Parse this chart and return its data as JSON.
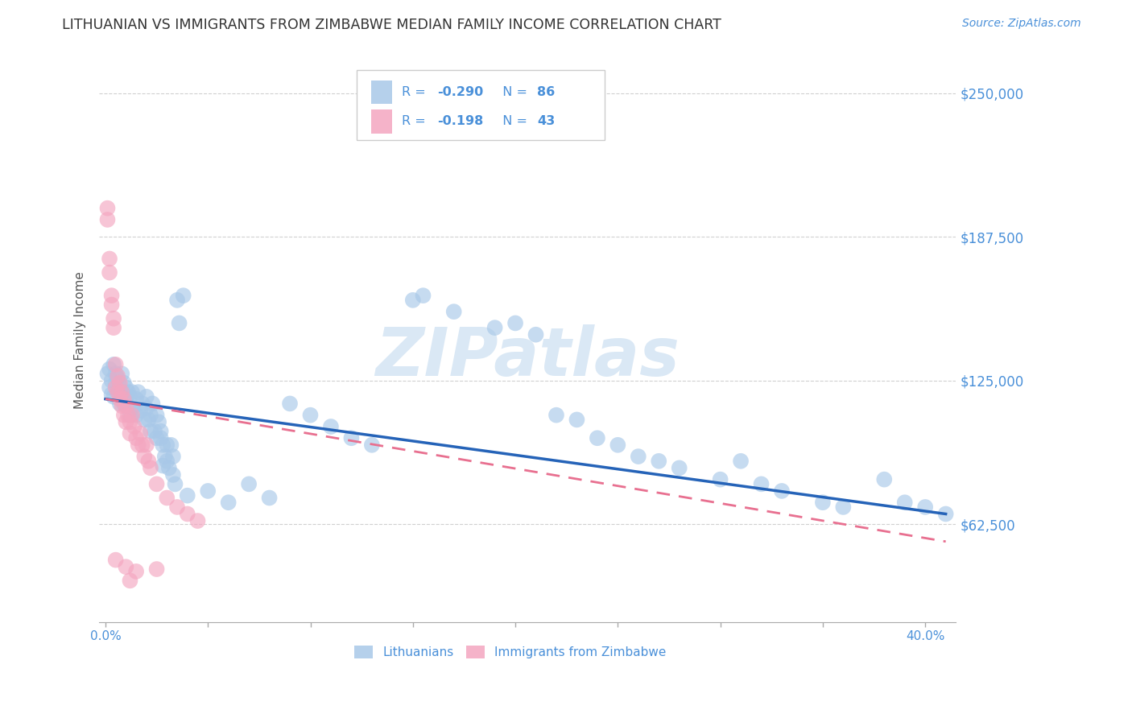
{
  "title": "LITHUANIAN VS IMMIGRANTS FROM ZIMBABWE MEDIAN FAMILY INCOME CORRELATION CHART",
  "source": "Source: ZipAtlas.com",
  "ylabel": "Median Family Income",
  "ytick_labels": [
    "$62,500",
    "$125,000",
    "$187,500",
    "$250,000"
  ],
  "ytick_values": [
    62500,
    125000,
    187500,
    250000
  ],
  "ymin": 20000,
  "ymax": 265000,
  "xmin": -0.003,
  "xmax": 0.415,
  "blue_color": "#a8c8e8",
  "pink_color": "#f4a6c0",
  "line_blue": "#2563b8",
  "line_pink": "#e87090",
  "legend_text_color": "#4a90d9",
  "watermark": "ZIPatlas",
  "watermark_color": "#dae8f5",
  "watermark_fontsize": 60,
  "blue_scatter": [
    [
      0.001,
      128000
    ],
    [
      0.002,
      122000
    ],
    [
      0.002,
      130000
    ],
    [
      0.003,
      125000
    ],
    [
      0.003,
      119000
    ],
    [
      0.004,
      132000
    ],
    [
      0.004,
      118000
    ],
    [
      0.005,
      124000
    ],
    [
      0.005,
      128000
    ],
    [
      0.006,
      120000
    ],
    [
      0.006,
      126000
    ],
    [
      0.007,
      115000
    ],
    [
      0.007,
      122000
    ],
    [
      0.008,
      128000
    ],
    [
      0.008,
      118000
    ],
    [
      0.009,
      124000
    ],
    [
      0.009,
      115000
    ],
    [
      0.01,
      118000
    ],
    [
      0.01,
      122000
    ],
    [
      0.011,
      114000
    ],
    [
      0.011,
      120000
    ],
    [
      0.012,
      110000
    ],
    [
      0.012,
      118000
    ],
    [
      0.013,
      120000
    ],
    [
      0.013,
      113000
    ],
    [
      0.015,
      117000
    ],
    [
      0.015,
      110000
    ],
    [
      0.016,
      120000
    ],
    [
      0.017,
      112000
    ],
    [
      0.018,
      115000
    ],
    [
      0.019,
      108000
    ],
    [
      0.02,
      113000
    ],
    [
      0.02,
      118000
    ],
    [
      0.021,
      108000
    ],
    [
      0.022,
      103000
    ],
    [
      0.022,
      110000
    ],
    [
      0.023,
      115000
    ],
    [
      0.024,
      103000
    ],
    [
      0.025,
      110000
    ],
    [
      0.025,
      100000
    ],
    [
      0.026,
      107000
    ],
    [
      0.027,
      103000
    ],
    [
      0.027,
      100000
    ],
    [
      0.028,
      88000
    ],
    [
      0.028,
      97000
    ],
    [
      0.029,
      92000
    ],
    [
      0.03,
      97000
    ],
    [
      0.03,
      90000
    ],
    [
      0.031,
      87000
    ],
    [
      0.032,
      97000
    ],
    [
      0.033,
      92000
    ],
    [
      0.033,
      84000
    ],
    [
      0.034,
      80000
    ],
    [
      0.035,
      160000
    ],
    [
      0.036,
      150000
    ],
    [
      0.038,
      162000
    ],
    [
      0.04,
      75000
    ],
    [
      0.05,
      77000
    ],
    [
      0.06,
      72000
    ],
    [
      0.07,
      80000
    ],
    [
      0.08,
      74000
    ],
    [
      0.09,
      115000
    ],
    [
      0.1,
      110000
    ],
    [
      0.11,
      105000
    ],
    [
      0.12,
      100000
    ],
    [
      0.13,
      97000
    ],
    [
      0.15,
      160000
    ],
    [
      0.155,
      162000
    ],
    [
      0.17,
      155000
    ],
    [
      0.19,
      148000
    ],
    [
      0.2,
      150000
    ],
    [
      0.21,
      145000
    ],
    [
      0.22,
      110000
    ],
    [
      0.23,
      108000
    ],
    [
      0.24,
      100000
    ],
    [
      0.25,
      97000
    ],
    [
      0.26,
      92000
    ],
    [
      0.27,
      90000
    ],
    [
      0.28,
      87000
    ],
    [
      0.3,
      82000
    ],
    [
      0.31,
      90000
    ],
    [
      0.32,
      80000
    ],
    [
      0.33,
      77000
    ],
    [
      0.35,
      72000
    ],
    [
      0.36,
      70000
    ],
    [
      0.38,
      82000
    ],
    [
      0.39,
      72000
    ],
    [
      0.4,
      70000
    ],
    [
      0.41,
      67000
    ]
  ],
  "pink_scatter": [
    [
      0.001,
      200000
    ],
    [
      0.001,
      195000
    ],
    [
      0.002,
      178000
    ],
    [
      0.002,
      172000
    ],
    [
      0.003,
      162000
    ],
    [
      0.003,
      158000
    ],
    [
      0.004,
      152000
    ],
    [
      0.004,
      148000
    ],
    [
      0.005,
      132000
    ],
    [
      0.005,
      122000
    ],
    [
      0.006,
      127000
    ],
    [
      0.006,
      120000
    ],
    [
      0.007,
      124000
    ],
    [
      0.007,
      117000
    ],
    [
      0.008,
      120000
    ],
    [
      0.008,
      114000
    ],
    [
      0.009,
      117000
    ],
    [
      0.009,
      110000
    ],
    [
      0.01,
      114000
    ],
    [
      0.01,
      107000
    ],
    [
      0.011,
      110000
    ],
    [
      0.012,
      107000
    ],
    [
      0.012,
      102000
    ],
    [
      0.013,
      110000
    ],
    [
      0.014,
      105000
    ],
    [
      0.015,
      100000
    ],
    [
      0.016,
      97000
    ],
    [
      0.017,
      102000
    ],
    [
      0.018,
      97000
    ],
    [
      0.019,
      92000
    ],
    [
      0.02,
      97000
    ],
    [
      0.021,
      90000
    ],
    [
      0.022,
      87000
    ],
    [
      0.025,
      80000
    ],
    [
      0.03,
      74000
    ],
    [
      0.035,
      70000
    ],
    [
      0.04,
      67000
    ],
    [
      0.045,
      64000
    ],
    [
      0.005,
      47000
    ],
    [
      0.01,
      44000
    ],
    [
      0.015,
      42000
    ],
    [
      0.025,
      43000
    ],
    [
      0.012,
      38000
    ]
  ],
  "blue_line_x": [
    0.0,
    0.41
  ],
  "blue_line_y": [
    117000,
    67000
  ],
  "pink_line_x": [
    0.0,
    0.41
  ],
  "pink_line_y": [
    117000,
    55000
  ],
  "grid_color": "#d0d0d0",
  "title_fontsize": 12.5,
  "source_fontsize": 10,
  "marker_size": 200
}
